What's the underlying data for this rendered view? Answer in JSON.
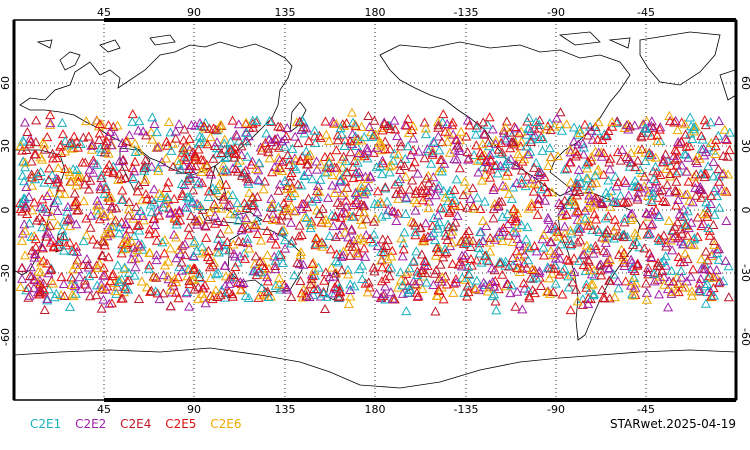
{
  "map": {
    "lon_ticks": [
      "45",
      "90",
      "135",
      "180",
      "-135",
      "-90",
      "-45"
    ],
    "lat_ticks": [
      "60",
      "30",
      "0",
      "-30",
      "-60"
    ],
    "coast_color": "#000000",
    "grid_style": "dotted",
    "marker_shape": "triangle-outline"
  },
  "legend": {
    "items": [
      {
        "label": "C2E1",
        "color": "#19b0c0"
      },
      {
        "label": "C2E2",
        "color": "#a020a8"
      },
      {
        "label": "C2E4",
        "color": "#c0182a"
      },
      {
        "label": "C2E5",
        "color": "#e01010"
      },
      {
        "label": "C2E6",
        "color": "#f0a800"
      }
    ]
  },
  "caption": "STARwet.2025-04-19"
}
